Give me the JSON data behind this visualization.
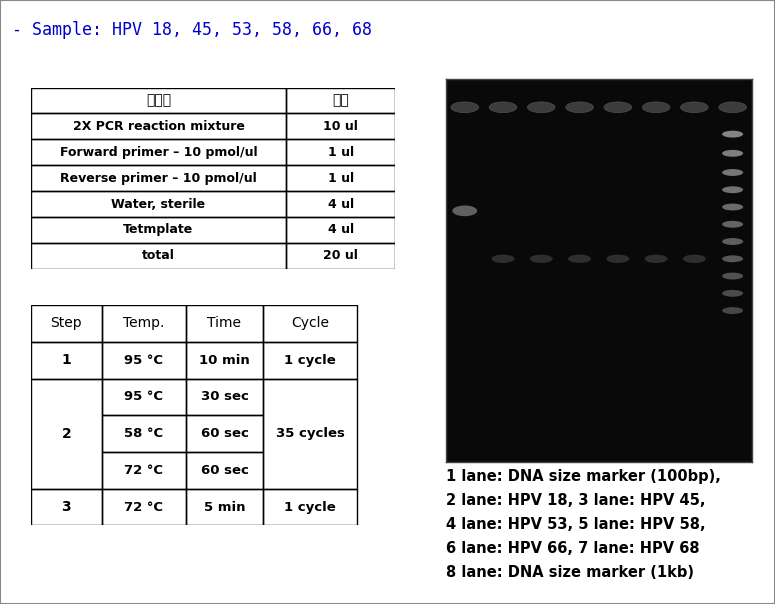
{
  "title": "- Sample: HPV 18, 45, 53, 58, 66, 68",
  "title_color": "#0000CC",
  "title_fontsize": 12,
  "bg_color": "#ffffff",
  "border_color": "#888888",
  "table1_headers": [
    "구성물",
    "용량"
  ],
  "table1_rows": [
    [
      "2X PCR reaction mixture",
      "10 ul"
    ],
    [
      "Forward primer – 10 pmol/ul",
      "1 ul"
    ],
    [
      "Reverse primer – 10 pmol/ul",
      "1 ul"
    ],
    [
      "Water, sterile",
      "4 ul"
    ],
    [
      "Tetmplate",
      "4 ul"
    ],
    [
      "total",
      "20 ul"
    ]
  ],
  "table2_headers": [
    "Step",
    "Temp.",
    "Time",
    "Cycle"
  ],
  "table2_rows": [
    {
      "step": "1",
      "temp": "95 °C",
      "time": "10 min",
      "cycle": "1 cycle",
      "merge_step": false,
      "merge_cycle": false
    },
    {
      "step": "",
      "temp": "95 °C",
      "time": "30 sec",
      "cycle": "",
      "merge_step": true,
      "merge_cycle": true
    },
    {
      "step": "2",
      "temp": "58 °C",
      "time": "60 sec",
      "cycle": "35 cycles",
      "merge_step": true,
      "merge_cycle": true
    },
    {
      "step": "",
      "temp": "72 °C",
      "time": "60 sec",
      "cycle": "",
      "merge_step": true,
      "merge_cycle": true
    },
    {
      "step": "3",
      "temp": "72 °C",
      "time": "5 min",
      "cycle": "1 cycle",
      "merge_step": false,
      "merge_cycle": false
    }
  ],
  "gel_caption_lines": [
    "1 lane: DNA size marker (100bp),",
    "2 lane: HPV 18, 3 lane: HPV 45,",
    "4 lane: HPV 53, 5 lane: HPV 58,",
    "6 lane: HPV 66, 7 lane: HPV 68",
    "8 lane: DNA size marker (1kb)"
  ],
  "gel_caption_fontsize": 10.5
}
